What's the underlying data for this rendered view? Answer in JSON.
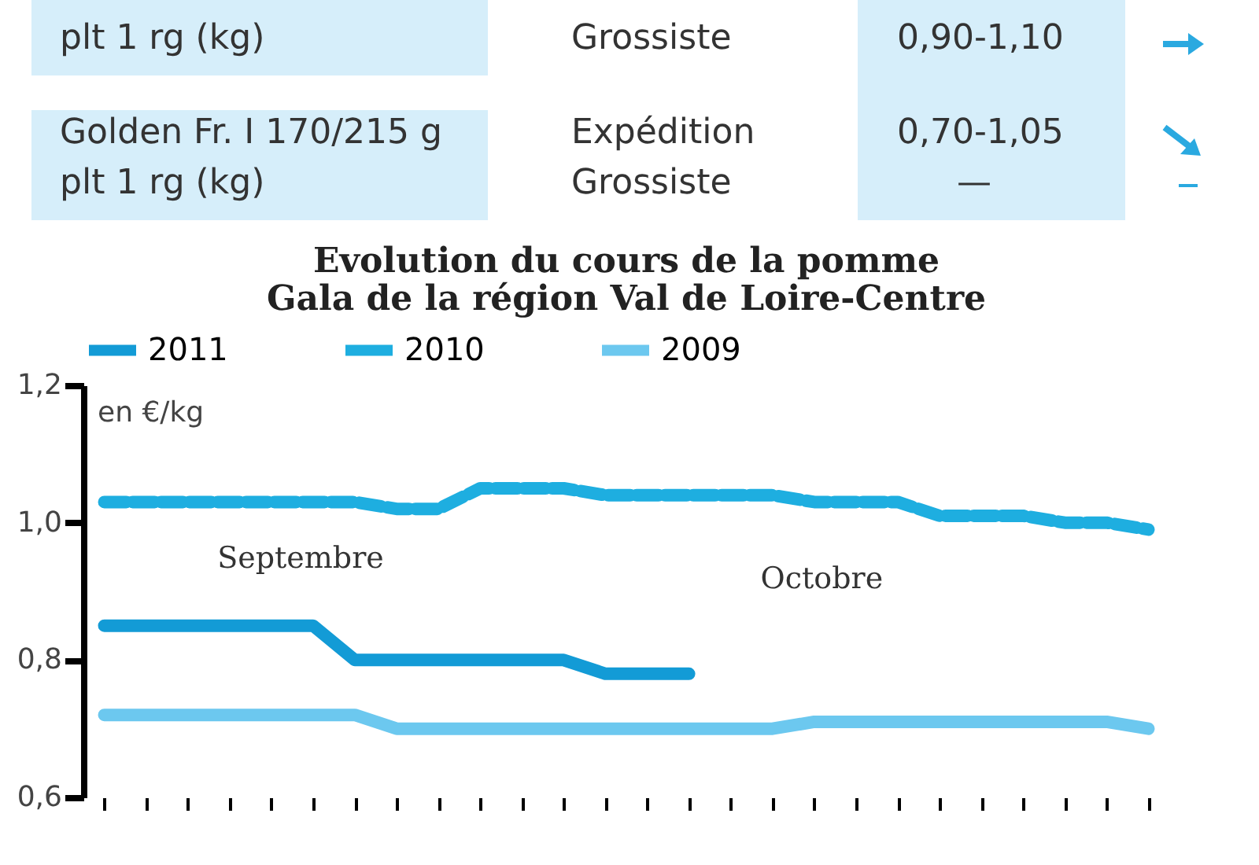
{
  "chart_data": {
    "type": "line",
    "title": "Evolution du cours de la pomme\nGala de la région Val de Loire-Centre",
    "ylabel": "en €/kg",
    "categories": [
      null,
      null,
      null,
      null,
      null,
      null,
      null,
      null,
      null,
      null,
      null,
      null,
      null,
      null,
      null,
      null,
      null,
      null,
      null,
      null,
      null,
      null,
      null,
      null,
      null,
      null
    ],
    "series": [
      {
        "name": "2011",
        "color": "#139bd6",
        "line_style": "solid",
        "values": [
          0.85,
          0.85,
          0.85,
          0.85,
          0.85,
          0.85,
          0.8,
          0.8,
          0.8,
          0.8,
          0.8,
          0.8,
          0.78,
          0.78,
          0.78,
          null,
          null,
          null,
          null,
          null,
          null,
          null,
          null,
          null,
          null,
          null
        ]
      },
      {
        "name": "2010",
        "color": "#1eaee0",
        "line_style": "dashed",
        "values": [
          1.03,
          1.03,
          1.03,
          1.03,
          1.03,
          1.03,
          1.03,
          1.02,
          1.02,
          1.05,
          1.05,
          1.05,
          1.04,
          1.04,
          1.04,
          1.04,
          1.04,
          1.03,
          1.03,
          1.03,
          1.01,
          1.01,
          1.01,
          1.0,
          1.0,
          0.99
        ]
      },
      {
        "name": "2009",
        "color": "#6cc8ef",
        "line_style": "solid",
        "values": [
          0.72,
          0.72,
          0.72,
          0.72,
          0.72,
          0.72,
          0.72,
          0.7,
          0.7,
          0.7,
          0.7,
          0.7,
          0.7,
          0.7,
          0.7,
          0.7,
          0.7,
          0.71,
          0.71,
          0.71,
          0.71,
          0.71,
          0.71,
          0.71,
          0.71,
          0.7
        ]
      }
    ],
    "ylim": [
      0.6,
      1.2
    ],
    "yticks": [
      {
        "value": 0.6,
        "label": "0,6"
      },
      {
        "value": 0.8,
        "label": "0,8"
      },
      {
        "value": 1.0,
        "label": "1,0"
      },
      {
        "value": 1.2,
        "label": "1,2"
      }
    ],
    "legend": "top",
    "grid": false,
    "annotations": [
      "Septembre",
      "Octobre",
      "plt 1 rg (kg)",
      "Grossiste",
      "0,90-1,10",
      "Golden Fr. I 170/215 g",
      "Expédition",
      "0,70-1,05",
      "plt 1 rg (kg)",
      "Grossiste",
      "—"
    ]
  }
}
